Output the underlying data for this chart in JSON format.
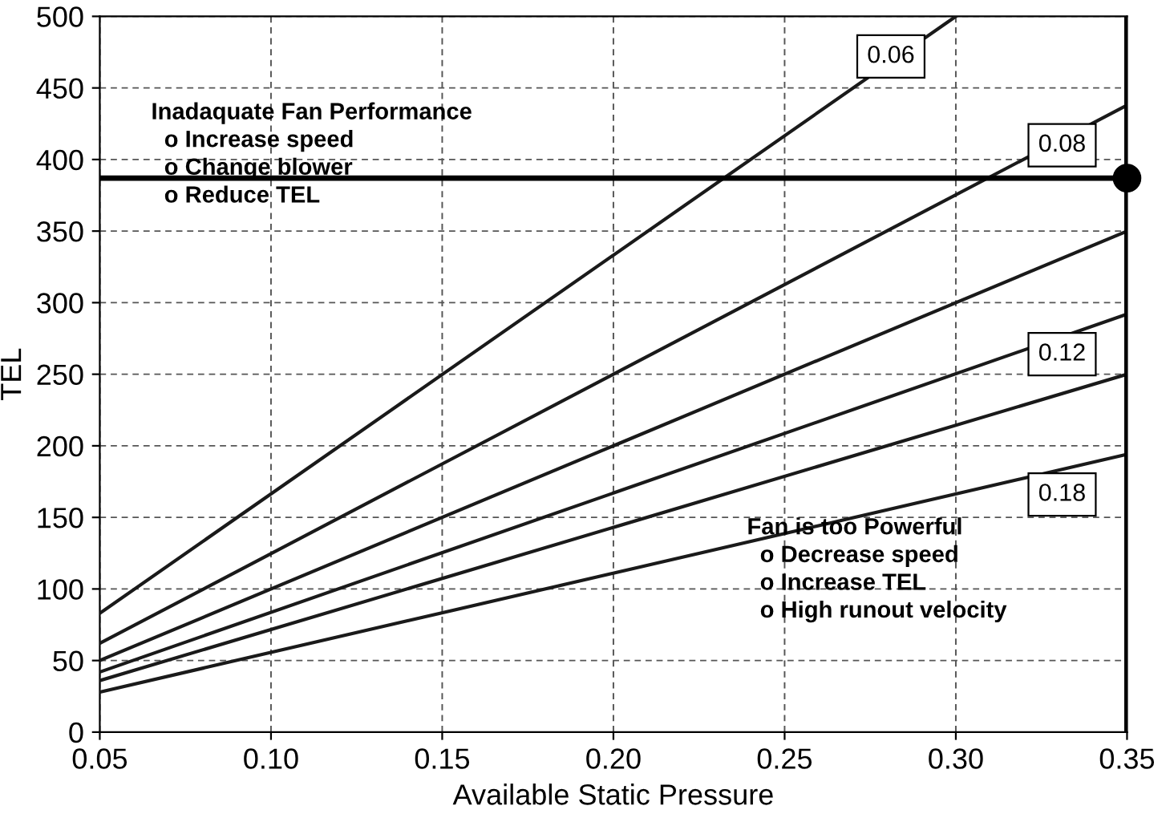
{
  "chart_data": {
    "type": "line",
    "xlabel": "Available Static Pressure",
    "ylabel": "TEL",
    "series": [
      {
        "name": "0.06",
        "color": "#1a1a1a",
        "x": [
          0.05,
          0.3
        ],
        "values": [
          83,
          500
        ]
      },
      {
        "name": "0.08",
        "color": "#1a1a1a",
        "x": [
          0.05,
          0.35
        ],
        "values": [
          62,
          438
        ]
      },
      {
        "color": "#1a1a1a",
        "x": [
          0.05,
          0.35
        ],
        "values": [
          50,
          350
        ]
      },
      {
        "name": "0.12",
        "color": "#1a1a1a",
        "x": [
          0.05,
          0.35
        ],
        "values": [
          42,
          292
        ]
      },
      {
        "color": "#1a1a1a",
        "x": [
          0.05,
          0.35
        ],
        "values": [
          36,
          250
        ]
      },
      {
        "name": "0.18",
        "color": "#1a1a1a",
        "x": [
          0.05,
          0.35
        ],
        "values": [
          28,
          194
        ]
      },
      {
        "type": "scatter",
        "color": "#000000",
        "marker": "circle",
        "x": [
          0.35
        ],
        "values": [
          387
        ]
      }
    ],
    "xlim": [
      0.05,
      0.35
    ],
    "ylim": [
      0,
      500
    ],
    "xticks": [
      0.05,
      {
        "value": 0.1,
        "label": "0.10"
      },
      0.15,
      {
        "value": 0.2,
        "label": "0.20"
      },
      0.25,
      {
        "value": 0.3,
        "label": "0.30"
      },
      0.35
    ],
    "yticks": [
      0,
      50,
      100,
      150,
      200,
      250,
      300,
      350,
      400,
      450,
      500
    ],
    "grid": true,
    "line_style": "solid",
    "marker": "none",
    "ref_lines": [
      {
        "axis": "y",
        "value": 387,
        "color": "#000000"
      },
      {
        "axis": "x",
        "value": 0.35,
        "color": "#000000"
      }
    ],
    "annotations": [
      "Inadaquate Fan Performance\n  o Increase speed\n  o Change blower\n  o Reduce TEL",
      "Fan is too Powerful\n  o Decrease speed\n  o Increase TEL\n  o High runout velocity"
    ]
  }
}
